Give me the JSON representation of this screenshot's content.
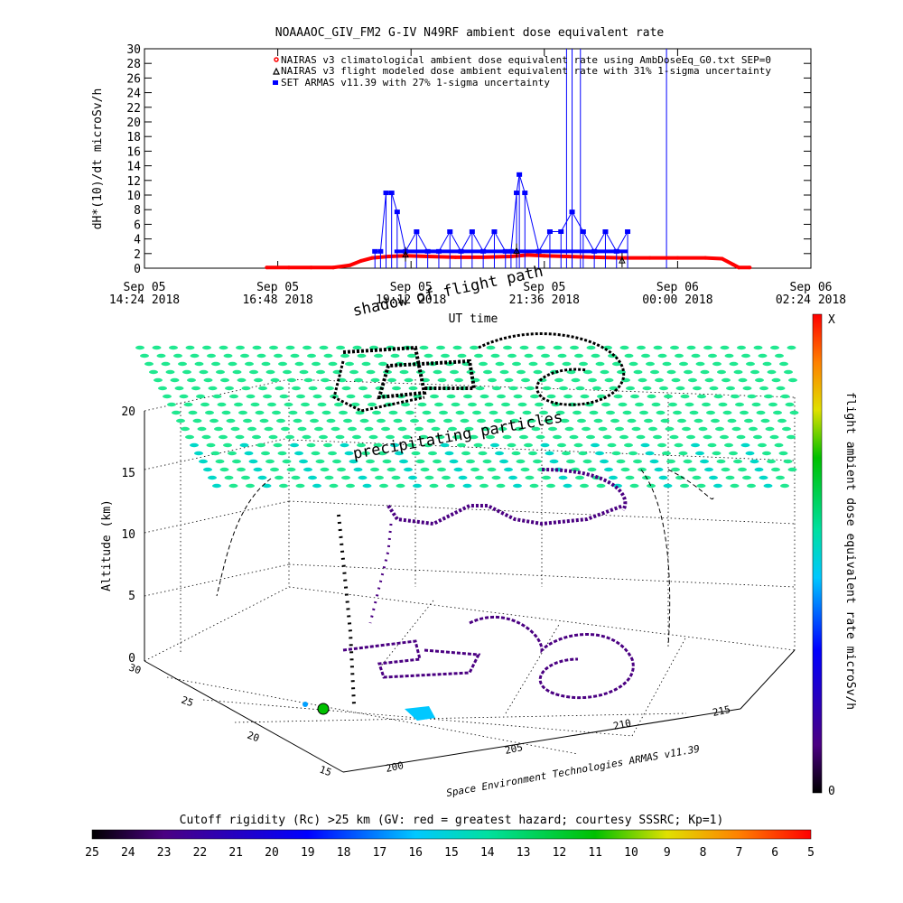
{
  "chart_data": [
    {
      "type": "scatter",
      "title": "NOAAAOC_GIV_FM2 G-IV    N49RF  ambient dose equivalent rate",
      "ylabel": "dH*(10)/dt microSv/h",
      "xlabel": "UT time",
      "ylim": [
        0,
        30
      ],
      "yticks": [
        "0",
        "2",
        "4",
        "6",
        "8",
        "10",
        "12",
        "14",
        "16",
        "18",
        "20",
        "22",
        "24",
        "26",
        "28",
        "30"
      ],
      "xlim_hours": [
        14.4,
        26.4
      ],
      "xticks": [
        {
          "line1": "Sep 05",
          "line2": "14:24 2018",
          "h": 14.4
        },
        {
          "line1": "Sep 05",
          "line2": "16:48 2018",
          "h": 16.8
        },
        {
          "line1": "Sep 05",
          "line2": "19:12 2018",
          "h": 19.2
        },
        {
          "line1": "Sep 05",
          "line2": "21:36 2018",
          "h": 21.6
        },
        {
          "line1": "Sep 06",
          "line2": "00:00 2018",
          "h": 24.0
        },
        {
          "line1": "Sep 06",
          "line2": "02:24 2018",
          "h": 26.4
        }
      ],
      "legend_position": "top-right",
      "series": [
        {
          "name": "NAIRAS v3 climatological ambient dose equivalent rate using AmbDoseEq_G0.txt SEP=0",
          "color": "#ff0000",
          "x_hours": [
            16.6,
            17.0,
            17.4,
            17.8,
            18.1,
            18.3,
            18.5,
            18.8,
            19.1,
            19.5,
            20.0,
            20.5,
            21.0,
            21.3,
            21.6,
            22.0,
            22.5,
            23.0,
            23.5,
            24.0,
            24.5,
            24.8,
            25.0,
            25.1,
            25.3
          ],
          "values": [
            0.1,
            0.1,
            0.1,
            0.1,
            0.4,
            1.0,
            1.4,
            1.6,
            1.7,
            1.6,
            1.5,
            1.5,
            1.6,
            1.8,
            1.7,
            1.6,
            1.5,
            1.4,
            1.4,
            1.4,
            1.4,
            1.3,
            0.5,
            0.1,
            0.1
          ]
        },
        {
          "name": "NAIRAS v3 flight modeled dose ambient equivalent rate with 31% 1-sigma uncertainty",
          "color": "#000000",
          "x_hours": [
            19.1,
            21.1,
            23.0
          ],
          "values": [
            1.9,
            2.4,
            1.1
          ]
        },
        {
          "name": "SET ARMAS v11.39 with 27% 1-sigma uncertainty",
          "color": "#0000ff",
          "x_hours": [
            18.55,
            18.65,
            18.75,
            18.85,
            18.95,
            19.1,
            19.3,
            19.5,
            19.7,
            19.9,
            20.1,
            20.3,
            20.5,
            20.7,
            20.9,
            21.0,
            21.1,
            21.15,
            21.25,
            21.5,
            21.7,
            21.9,
            22.1,
            22.3,
            22.5,
            22.7,
            22.9,
            23.1
          ],
          "values": [
            2.3,
            2.3,
            10.3,
            10.3,
            7.7,
            2.3,
            5.0,
            2.3,
            2.3,
            5.0,
            2.3,
            5.0,
            2.3,
            5.0,
            2.3,
            2.3,
            10.3,
            12.8,
            10.3,
            2.3,
            5.0,
            5.0,
            7.7,
            5.0,
            2.3,
            5.0,
            2.3,
            5.0
          ]
        }
      ],
      "spikes_hours": [
        22.0,
        22.1,
        22.25,
        23.8
      ]
    },
    {
      "type": "scatter",
      "ylabel": "Altitude (km)",
      "zticks": [
        "0",
        "5",
        "10",
        "15",
        "20"
      ],
      "yticks": [
        "15",
        "20",
        "25",
        "30"
      ],
      "xticks": [
        "200",
        "205",
        "210",
        "215"
      ],
      "annotations": [
        "shadow of flight path",
        "precipitating particles"
      ],
      "credit": "Space Environment Technologies ARMAS v11.39",
      "side_colorbar": {
        "label": "flight ambient dose equivalent rate microSv/h",
        "top_label": "X",
        "bottom_label": "0"
      },
      "bottom_colorbar": {
        "title": "Cutoff rigidity (Rc) >25 km (GV: red = greatest hazard; courtesy SSSRC; Kp=1)",
        "ticks": [
          "25",
          "24",
          "23",
          "22",
          "21",
          "20",
          "19",
          "18",
          "17",
          "16",
          "15",
          "14",
          "13",
          "12",
          "11",
          "10",
          "9",
          "8",
          "7",
          "6",
          "5"
        ]
      }
    }
  ]
}
